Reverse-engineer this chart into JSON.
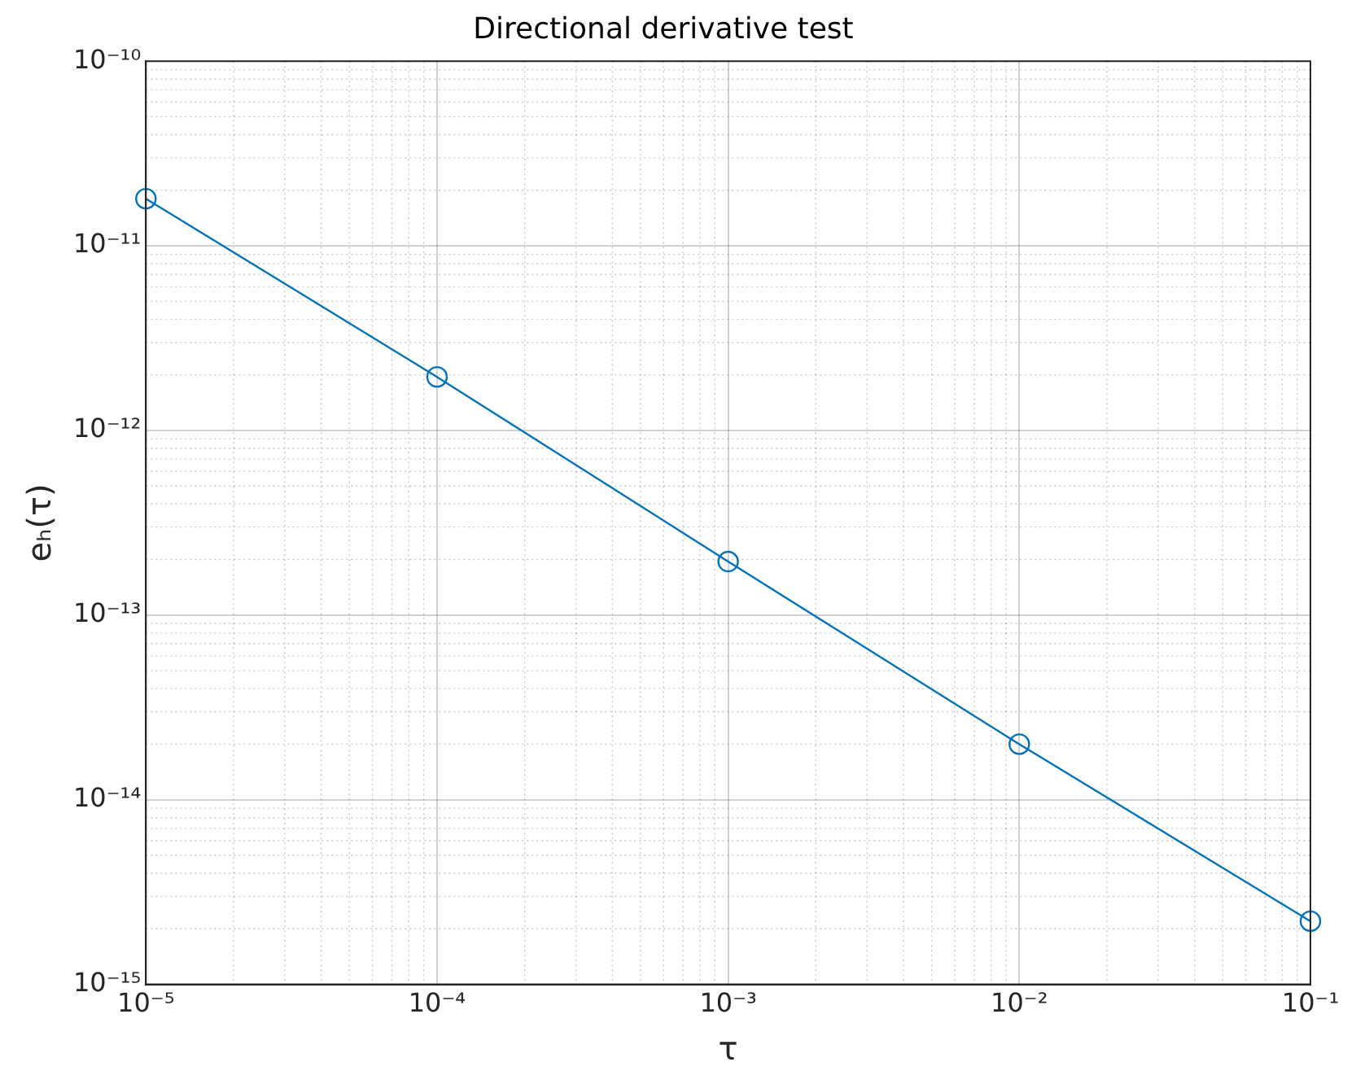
{
  "chart_data": {
    "type": "line",
    "title": "Directional derivative test",
    "xlabel": "τ",
    "ylabel": "eₕ(τ)",
    "x": [
      1e-05,
      0.0001,
      0.001,
      0.01,
      0.1
    ],
    "series": [
      {
        "color": "#0072bd",
        "values": [
          1.8e-11,
          1.95e-12,
          1.95e-13,
          2e-14,
          2.2e-15
        ]
      }
    ],
    "log": "xy",
    "grid": true,
    "marker": "circle",
    "line_style": "solid",
    "legend": false,
    "xlim": [
      1e-05,
      0.1
    ],
    "xticks": [
      {
        "value": 1e-05,
        "label": "10⁻⁵"
      },
      {
        "value": 0.0001,
        "label": "10⁻⁴"
      },
      {
        "value": 0.001,
        "label": "10⁻³"
      },
      {
        "value": 0.01,
        "label": "10⁻²"
      },
      {
        "value": 0.1,
        "label": "10⁻¹"
      }
    ],
    "ylim": [
      1e-15,
      1e-10
    ],
    "yticks": [
      {
        "value": 1e-15,
        "label": "10⁻¹⁵"
      },
      {
        "value": 1e-14,
        "label": "10⁻¹⁴"
      },
      {
        "value": 1e-13,
        "label": "10⁻¹³"
      },
      {
        "value": 1e-12,
        "label": "10⁻¹²"
      },
      {
        "value": 1e-11,
        "label": "10⁻¹¹"
      },
      {
        "value": 1e-10,
        "label": "10⁻¹⁰"
      }
    ]
  }
}
